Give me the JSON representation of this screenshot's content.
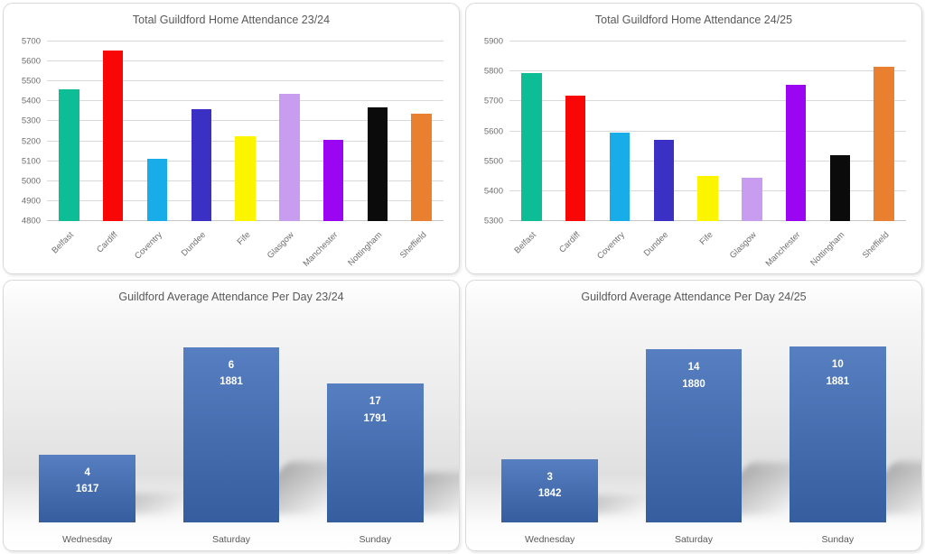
{
  "theme": {
    "title_color": "#595959",
    "tick_color": "#6e6e6e",
    "grid_color": "#d9d9d9",
    "card_border": "#d9d9d9",
    "page_background": "#ffffff",
    "average_bar_color": "#3f6db8",
    "bar_label_color": "#ffffff"
  },
  "chart_data": [
    {
      "id": "total-home-attendance-23-24",
      "type": "bar",
      "title": "Total Guildford Home Attendance 23/24",
      "categories": [
        "Belfast",
        "Cardiff",
        "Coventry",
        "Dundee",
        "Fife",
        "Glasgow",
        "Manchester",
        "Nottingham",
        "Sheffield"
      ],
      "values": [
        5460,
        5655,
        5110,
        5360,
        5225,
        5440,
        5205,
        5370,
        5340
      ],
      "bar_colors": [
        "#0dbd96",
        "#f90606",
        "#18ace8",
        "#3a30c4",
        "#fdf500",
        "#c89cee",
        "#9a05f2",
        "#0b0b0b",
        "#e8802f"
      ],
      "ylim": [
        4800,
        5700
      ],
      "ytick_step": 100,
      "grid": true,
      "legend": false,
      "x_labels_rotated_deg": 45
    },
    {
      "id": "total-home-attendance-24-25",
      "type": "bar",
      "title": "Total Guildford Home Attendance 24/25",
      "categories": [
        "Belfast",
        "Cardiff",
        "Coventry",
        "Dundee",
        "Fife",
        "Glasgow",
        "Manchester",
        "Nottingham",
        "Sheffield"
      ],
      "values": [
        5795,
        5720,
        5595,
        5570,
        5450,
        5445,
        5755,
        5520,
        5815
      ],
      "bar_colors": [
        "#0dbd96",
        "#f90606",
        "#18ace8",
        "#3a30c4",
        "#fdf500",
        "#c89cee",
        "#9a05f2",
        "#0b0b0b",
        "#e8802f"
      ],
      "ylim": [
        5300,
        5900
      ],
      "ytick_step": 100,
      "grid": true,
      "legend": false,
      "x_labels_rotated_deg": 45
    },
    {
      "id": "average-attendance-per-day-23-24",
      "type": "bar",
      "title": "Guildford Average Attendance Per Day 23/24",
      "categories": [
        "Wednesday",
        "Saturday",
        "Sunday"
      ],
      "counts": [
        4,
        6,
        17
      ],
      "values": [
        1617,
        1881,
        1791
      ],
      "data_labels": [
        [
          "4",
          "1617"
        ],
        [
          "6",
          "1881"
        ],
        [
          "17",
          "1791"
        ]
      ],
      "ylim": [
        1450,
        1960
      ],
      "grid": false,
      "legend": false,
      "y_axis_visible": false
    },
    {
      "id": "average-attendance-per-day-24-25",
      "type": "bar",
      "title": "Guildford Average Attendance Per Day 24/25",
      "categories": [
        "Wednesday",
        "Saturday",
        "Sunday"
      ],
      "counts": [
        3,
        14,
        10
      ],
      "values": [
        1842,
        1880,
        1881
      ],
      "data_labels": [
        [
          "3",
          "1842"
        ],
        [
          "14",
          "1880"
        ],
        [
          "10",
          "1881"
        ]
      ],
      "ylim": [
        1820,
        1892
      ],
      "grid": false,
      "legend": false,
      "y_axis_visible": false
    }
  ]
}
